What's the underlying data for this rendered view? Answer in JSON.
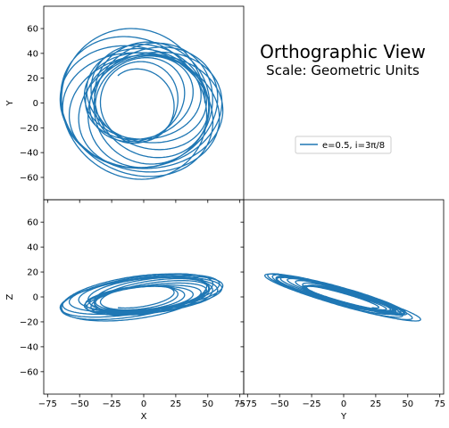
{
  "chart_data": {
    "type": "line",
    "title": "Orthographic View",
    "subtitle": "Scale: Geometric Units",
    "series": [
      {
        "name": "e=0.5, i=3π/8",
        "color": "#1f77b4"
      }
    ],
    "panels": [
      {
        "id": "xy",
        "xlabel": "",
        "ylabel": "Y",
        "xlim": [
          -78,
          78
        ],
        "ylim": [
          -78,
          78
        ],
        "show_xticklabels": false,
        "show_yticklabels": true
      },
      {
        "id": "xz",
        "xlabel": "X",
        "ylabel": "Z",
        "xlim": [
          -78,
          78
        ],
        "ylim": [
          -78,
          78
        ],
        "show_xticklabels": true,
        "show_yticklabels": true
      },
      {
        "id": "yz",
        "xlabel": "Y",
        "ylabel": "",
        "xlim": [
          -78,
          78
        ],
        "ylim": [
          -78,
          78
        ],
        "show_xticklabels": true,
        "show_yticklabels": false
      }
    ],
    "ticks": [
      -75,
      -50,
      -25,
      0,
      25,
      50,
      75
    ],
    "yticks": [
      -60,
      -40,
      -20,
      0,
      20,
      40,
      60
    ],
    "legend_position": "right-middle",
    "grid": false
  }
}
